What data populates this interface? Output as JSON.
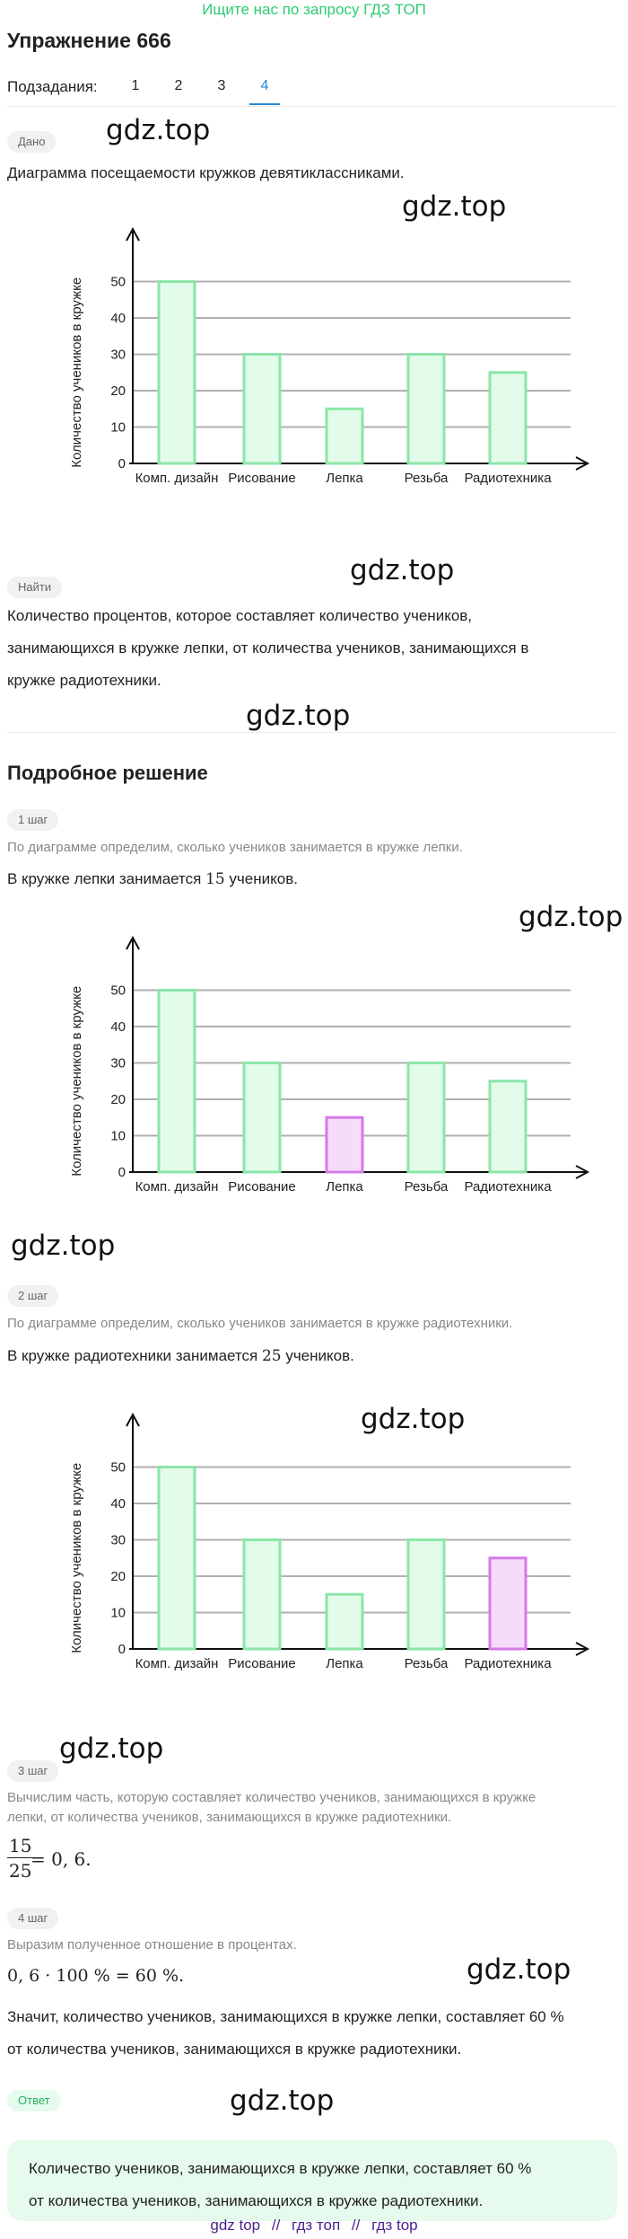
{
  "banner": "Ищите нас по запросу ГДЗ ТОП",
  "title": "Упражнение 666",
  "subtasks": {
    "label": "Подзадания:",
    "items": [
      "1",
      "2",
      "3",
      "4"
    ],
    "active": "4"
  },
  "given": {
    "tag": "Дано",
    "text": "Диаграмма посещаемости кружков девятиклассниками."
  },
  "find": {
    "tag": "Найти",
    "lines": [
      "Количество процентов, которое составляет количество учеников,",
      "занимающихся в кружке лепки, от количества учеников, занимающихся в",
      "кружке радиотехники."
    ]
  },
  "solution_title": "Подробное решение",
  "steps": {
    "s1": {
      "tag": "1 шаг",
      "hint": "По диаграмме определим, сколько учеников занимается в кружке лепки.",
      "text_before": "В кружке лепки занимается ",
      "value": "15",
      "text_after": " учеников."
    },
    "s2": {
      "tag": "2 шаг",
      "hint": "По диаграмме определим, сколько учеников занимается в кружке радиотехники.",
      "text_before": "В кружке радиотехники занимается ",
      "value": "25",
      "text_after": " учеников."
    },
    "s3": {
      "tag": "3 шаг",
      "hint_lines": [
        "Вычислим часть, которую составляет количество учеников, занимающихся в кружке",
        "лепки, от количества учеников, занимающихся в кружке радиотехники."
      ],
      "numerator": "15",
      "denominator": "25",
      "result": " = 0, 6."
    },
    "s4": {
      "tag": "4 шаг",
      "hint": "Выразим полученное отношение в процентах.",
      "formula": "0, 6 · 100 % = 60 %.",
      "conclusion_lines": [
        "Значит, количество учеников, занимающихся в кружке лепки, составляет 60 %",
        "от количества учеников, занимающихся в кружке радиотехники."
      ]
    }
  },
  "answer": {
    "tag": "Ответ",
    "lines": [
      "Количество учеников, занимающихся в кружке лепки, составляет 60 %",
      "от количества учеников, занимающихся в кружке радиотехники."
    ]
  },
  "watermark": "gdz.top",
  "footer": [
    "gdz top",
    "//",
    "гдз топ",
    "//",
    "гдз top"
  ],
  "colors": {
    "bar_fill": "#e3fbea",
    "bar_stroke": "#8be6a8",
    "highlight_fill": "#f6dcfb",
    "highlight_stroke": "#d57ae8",
    "grid": "#b0b0b0",
    "accent": "#1f8ad6",
    "banner": "#2ecc71"
  },
  "chart_data": [
    {
      "type": "bar",
      "categories": [
        "Комп. дизайн",
        "Рисование",
        "Лепка",
        "Резьба",
        "Радиотехника"
      ],
      "values": [
        50,
        30,
        15,
        30,
        25
      ],
      "ylabel": "Количество учеников в кружке",
      "yticks": [
        0,
        10,
        20,
        30,
        40,
        50
      ],
      "ylim": [
        0,
        55
      ],
      "grid": true,
      "highlight": null
    },
    {
      "type": "bar",
      "categories": [
        "Комп. дизайн",
        "Рисование",
        "Лепка",
        "Резьба",
        "Радиотехника"
      ],
      "values": [
        50,
        30,
        15,
        30,
        25
      ],
      "ylabel": "Количество учеников в кружке",
      "yticks": [
        0,
        10,
        20,
        30,
        40,
        50
      ],
      "ylim": [
        0,
        55
      ],
      "grid": true,
      "highlight": "Лепка"
    },
    {
      "type": "bar",
      "categories": [
        "Комп. дизайн",
        "Рисование",
        "Лепка",
        "Резьба",
        "Радиотехника"
      ],
      "values": [
        50,
        30,
        15,
        30,
        25
      ],
      "ylabel": "Количество учеников в кружке",
      "yticks": [
        0,
        10,
        20,
        30,
        40,
        50
      ],
      "ylim": [
        0,
        55
      ],
      "grid": true,
      "highlight": "Радиотехника"
    }
  ]
}
